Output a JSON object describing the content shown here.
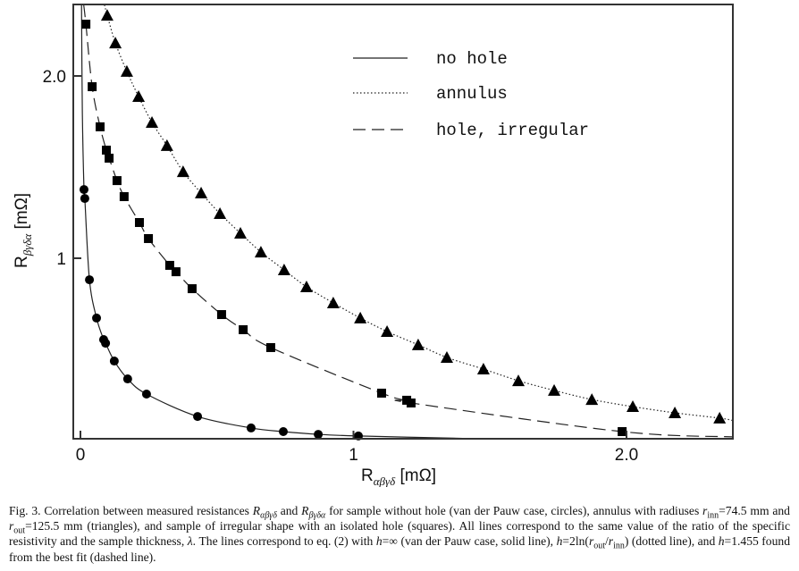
{
  "chart_data": {
    "type": "scatter",
    "xlabel": {
      "main": "R",
      "sub": "αβγδ",
      "unit": " [mΩ]"
    },
    "ylabel": {
      "main": "R",
      "sub": "βγδα",
      "unit": " [mΩ]"
    },
    "xlim": [
      -0.026,
      2.39
    ],
    "ylim": [
      0.01,
      2.39
    ],
    "xticks": [
      {
        "value": 0,
        "label": "0"
      },
      {
        "value": 1,
        "label": "1"
      },
      {
        "value": 2,
        "label": "2.0"
      }
    ],
    "yticks": [
      {
        "value": 1,
        "label": "1"
      },
      {
        "value": 2,
        "label": "2.0"
      }
    ],
    "grid": false,
    "legend_position": "top-right",
    "legend": [
      {
        "label": "no hole",
        "style": "solid"
      },
      {
        "label": "annulus",
        "style": "dotted"
      },
      {
        "label": "hole, irregular",
        "style": "dashed"
      }
    ],
    "series": [
      {
        "name": "no hole",
        "marker": "circle",
        "line": "solid",
        "x": [
          0.013,
          0.016,
          0.033,
          0.059,
          0.085,
          0.092,
          0.124,
          0.173,
          0.242,
          0.429,
          0.625,
          0.743,
          0.871,
          1.018
        ],
        "y": [
          1.377,
          1.328,
          0.882,
          0.672,
          0.554,
          0.534,
          0.436,
          0.338,
          0.255,
          0.132,
          0.069,
          0.049,
          0.034,
          0.025
        ],
        "curve_start": [
          [
            0.004,
            2.39
          ],
          [
            0.007,
            1.8
          ]
        ],
        "curve_end": [
          [
            1.4,
            0.012
          ]
        ]
      },
      {
        "name": "annulus",
        "marker": "triangle",
        "line": "dotted",
        "x": [
          0.098,
          0.128,
          0.17,
          0.213,
          0.262,
          0.317,
          0.376,
          0.442,
          0.511,
          0.586,
          0.661,
          0.746,
          0.828,
          0.926,
          1.025,
          1.123,
          1.237,
          1.342,
          1.476,
          1.604,
          1.735,
          1.873,
          2.023,
          2.177,
          2.341
        ],
        "y": [
          2.333,
          2.181,
          2.025,
          1.887,
          1.745,
          1.618,
          1.475,
          1.358,
          1.245,
          1.137,
          1.034,
          0.936,
          0.843,
          0.755,
          0.672,
          0.598,
          0.525,
          0.456,
          0.392,
          0.328,
          0.275,
          0.225,
          0.186,
          0.152,
          0.123
        ],
        "curve_start": [
          [
            0.088,
            2.39
          ]
        ],
        "curve_end": [
          [
            2.39,
            0.11
          ]
        ]
      },
      {
        "name": "hole, irregular",
        "marker": "square",
        "line": "dashed",
        "x": [
          0.02,
          0.043,
          0.072,
          0.095,
          0.105,
          0.134,
          0.16,
          0.216,
          0.249,
          0.327,
          0.35,
          0.409,
          0.517,
          0.596,
          0.697,
          1.103,
          1.195,
          1.211,
          1.984
        ],
        "y": [
          2.284,
          1.941,
          1.721,
          1.593,
          1.549,
          1.426,
          1.338,
          1.196,
          1.108,
          0.961,
          0.926,
          0.833,
          0.691,
          0.608,
          0.51,
          0.26,
          0.221,
          0.206,
          0.049
        ],
        "curve_start": [
          [
            0.012,
            2.39
          ]
        ],
        "curve_end": [
          [
            2.39,
            0.02
          ]
        ]
      }
    ]
  },
  "caption": [
    {
      "t": "Fig. 3. Correlation between measured resistances "
    },
    {
      "t": "R",
      "i": true
    },
    {
      "t": "αβγδ",
      "i": true,
      "sub": true
    },
    {
      "t": " and "
    },
    {
      "t": "R",
      "i": true
    },
    {
      "t": "βγδα",
      "i": true,
      "sub": true
    },
    {
      "t": " for sample without hole (van der Pauw case, circles), annulus with radiuses "
    },
    {
      "t": "r",
      "i": true
    },
    {
      "t": "inn",
      "sub": true
    },
    {
      "t": "=74.5 mm and "
    },
    {
      "t": "r",
      "i": true
    },
    {
      "t": "out",
      "sub": true
    },
    {
      "t": "=125.5 mm (triangles), and sample of irregular shape with an isolated hole (squares). All lines correspond to the same value of the ratio of the specific resistivity and the sample thickness, "
    },
    {
      "t": "λ",
      "i": true
    },
    {
      "t": ". The lines correspond to eq. (2) with "
    },
    {
      "t": "h",
      "i": true
    },
    {
      "t": "=∞ (van der Pauw case, solid line), "
    },
    {
      "t": "h",
      "i": true
    },
    {
      "t": "=2ln("
    },
    {
      "t": "r",
      "i": true
    },
    {
      "t": "out",
      "sub": true
    },
    {
      "t": "/"
    },
    {
      "t": "r",
      "i": true
    },
    {
      "t": "inn",
      "sub": true
    },
    {
      "t": ") (dotted line), and "
    },
    {
      "t": "h",
      "i": true
    },
    {
      "t": "=1.455 found from the best fit (dashed line)."
    }
  ]
}
